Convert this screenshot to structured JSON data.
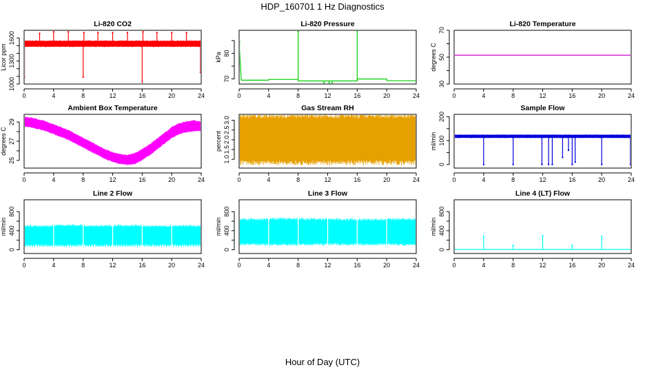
{
  "figure": {
    "title": "HDP_160701  1 Hz Diagnostics",
    "xlabel": "Hour of Day (UTC)"
  },
  "chart_data": [
    {
      "type": "line",
      "title": "Li-820 CO2",
      "ylabel": "Licor ppm",
      "color": "#ff0000",
      "xlim": [
        0,
        24
      ],
      "ylim": [
        1000,
        1700
      ],
      "xticks": [
        0,
        4,
        8,
        12,
        16,
        20,
        24
      ],
      "yticks": [
        1000,
        1300,
        1600
      ],
      "yticks_minor": [
        1100,
        1200,
        1400,
        1500
      ],
      "band": {
        "x": [
          0,
          24
        ],
        "low": [
          1490,
          1490
        ],
        "high": [
          1560,
          1560
        ]
      },
      "spikes": [
        {
          "x": 0.05,
          "y": 1090
        },
        {
          "x": 2.1,
          "y": 1660
        },
        {
          "x": 4.0,
          "y": 1680
        },
        {
          "x": 6.0,
          "y": 1680
        },
        {
          "x": 8.0,
          "y": 1090
        },
        {
          "x": 8.1,
          "y": 1670
        },
        {
          "x": 10.0,
          "y": 1670
        },
        {
          "x": 12.0,
          "y": 1670
        },
        {
          "x": 14.0,
          "y": 1670
        },
        {
          "x": 16.0,
          "y": 1000
        },
        {
          "x": 16.1,
          "y": 1680
        },
        {
          "x": 18.0,
          "y": 1670
        },
        {
          "x": 20.0,
          "y": 1670
        },
        {
          "x": 22.0,
          "y": 1670
        },
        {
          "x": 23.9,
          "y": 1150
        }
      ]
    },
    {
      "type": "line",
      "title": "Li-820 Pressure",
      "ylabel": "kPa",
      "color": "#00cc00",
      "xlim": [
        0,
        24
      ],
      "ylim": [
        68,
        89
      ],
      "xticks": [
        0,
        4,
        8,
        12,
        16,
        20,
        24
      ],
      "yticks": [
        70,
        80
      ],
      "yticks_minor": [
        75,
        85
      ],
      "line": {
        "x": [
          0,
          0.3,
          4,
          4.01,
          8,
          8.01,
          16,
          16.01,
          20,
          20.01,
          24
        ],
        "y": [
          84,
          69.5,
          69.5,
          69.8,
          69.8,
          69.2,
          69.2,
          70.0,
          70.0,
          69.3,
          69.3
        ]
      },
      "spikes": [
        {
          "x": 0.05,
          "y": 84.5
        },
        {
          "x": 8.0,
          "y": 88.5
        },
        {
          "x": 16.0,
          "y": 88.8
        },
        {
          "x": 24.0,
          "y": 88.5
        },
        {
          "x": 11.5,
          "y": 68.3
        },
        {
          "x": 12.2,
          "y": 68.3
        },
        {
          "x": 12.6,
          "y": 68.3
        }
      ]
    },
    {
      "type": "line",
      "title": "Li-820 Temperature",
      "ylabel": "degrees C",
      "color": "#cc00cc",
      "xlim": [
        0,
        24
      ],
      "ylim": [
        30,
        70
      ],
      "xticks": [
        0,
        4,
        8,
        12,
        16,
        20,
        24
      ],
      "yticks": [
        30,
        50,
        70
      ],
      "yticks_minor": [
        40,
        60
      ],
      "line": {
        "x": [
          0,
          24
        ],
        "y": [
          51.5,
          51.5
        ]
      }
    },
    {
      "type": "area",
      "title": "Ambient Box Temperature",
      "ylabel": "degrees C",
      "color": "#ff00ff",
      "xlim": [
        0,
        24
      ],
      "ylim": [
        24.2,
        29.8
      ],
      "xticks": [
        0,
        4,
        8,
        12,
        16,
        20,
        24
      ],
      "yticks": [
        25,
        27,
        29
      ],
      "yticks_minor": [
        26,
        28
      ],
      "band": {
        "x": [
          0,
          1,
          2,
          3,
          4,
          5,
          6,
          7,
          8,
          9,
          10,
          11,
          12,
          13,
          14,
          15,
          16,
          17,
          18,
          19,
          20,
          21,
          22,
          23,
          24
        ],
        "low": [
          28.6,
          28.5,
          28.3,
          28.1,
          27.8,
          27.5,
          27.2,
          26.8,
          26.4,
          26.0,
          25.6,
          25.2,
          24.9,
          24.7,
          24.6,
          24.7,
          25.1,
          25.6,
          26.2,
          26.8,
          27.4,
          27.8,
          28.0,
          28.1,
          28.1
        ],
        "high": [
          29.5,
          29.4,
          29.2,
          29.0,
          28.7,
          28.4,
          28.1,
          27.7,
          27.3,
          26.9,
          26.5,
          26.1,
          25.8,
          25.6,
          25.5,
          25.7,
          26.1,
          26.6,
          27.2,
          27.8,
          28.4,
          28.8,
          29.0,
          29.1,
          29.0
        ]
      }
    },
    {
      "type": "area",
      "title": "Gas Stream RH",
      "ylabel": "percent",
      "color": "#e6a000",
      "xlim": [
        0,
        24
      ],
      "ylim": [
        0.55,
        3.3
      ],
      "xticks": [
        0,
        4,
        8,
        12,
        16,
        20,
        24
      ],
      "yticks": [
        1.0,
        1.5,
        2.0,
        2.5,
        3.0
      ],
      "yticks_format": "1dp",
      "band": {
        "x": [
          0,
          24
        ],
        "low": [
          0.95,
          0.95
        ],
        "high": [
          3.1,
          3.1
        ]
      },
      "dips": [
        {
          "x": 1.2,
          "y": 1.6
        },
        {
          "x": 2.4,
          "y": 2.0
        },
        {
          "x": 3.5,
          "y": 1.3
        },
        {
          "x": 4.8,
          "y": 0.8
        },
        {
          "x": 5.4,
          "y": 1.1
        },
        {
          "x": 6.3,
          "y": 1.8
        },
        {
          "x": 7.7,
          "y": 1.3
        },
        {
          "x": 8.6,
          "y": 2.2
        },
        {
          "x": 9.4,
          "y": 1.5
        },
        {
          "x": 10.2,
          "y": 2.0
        },
        {
          "x": 11.1,
          "y": 1.4
        },
        {
          "x": 12.4,
          "y": 1.9
        },
        {
          "x": 13.6,
          "y": 1.5
        },
        {
          "x": 14.8,
          "y": 1.8
        },
        {
          "x": 15.7,
          "y": 1.4
        },
        {
          "x": 16.5,
          "y": 2.1
        },
        {
          "x": 17.4,
          "y": 1.7
        },
        {
          "x": 18.6,
          "y": 1.5
        },
        {
          "x": 19.8,
          "y": 2.2
        },
        {
          "x": 21.1,
          "y": 1.6
        },
        {
          "x": 22.3,
          "y": 1.9
        },
        {
          "x": 23.4,
          "y": 1.5
        }
      ]
    },
    {
      "type": "line",
      "title": "Sample Flow",
      "ylabel": "ml/min",
      "color": "#0000dd",
      "xlim": [
        0,
        24
      ],
      "ylim": [
        -15,
        210
      ],
      "xticks": [
        0,
        4,
        8,
        12,
        16,
        20,
        24
      ],
      "yticks": [
        0,
        100,
        200
      ],
      "yticks_minor": [
        50,
        150
      ],
      "band": {
        "x": [
          0,
          24
        ],
        "low": [
          112,
          112
        ],
        "high": [
          124,
          124
        ]
      },
      "dips": [
        {
          "x": 4.0,
          "y": 0
        },
        {
          "x": 8.0,
          "y": 0
        },
        {
          "x": 11.9,
          "y": 0
        },
        {
          "x": 12.8,
          "y": 0
        },
        {
          "x": 13.3,
          "y": 0
        },
        {
          "x": 14.7,
          "y": 30
        },
        {
          "x": 15.5,
          "y": 60
        },
        {
          "x": 16.0,
          "y": 0
        },
        {
          "x": 16.4,
          "y": 10
        },
        {
          "x": 20.0,
          "y": 0
        },
        {
          "x": 23.9,
          "y": 0
        }
      ]
    },
    {
      "type": "area",
      "title": "Line 2 Flow",
      "ylabel": "ml/min",
      "color": "#00ffff",
      "xlim": [
        0,
        24
      ],
      "ylim": [
        -80,
        1050
      ],
      "xticks": [
        0,
        4,
        8,
        12,
        16,
        20,
        24
      ],
      "yticks": [
        0,
        400,
        800
      ],
      "yticks_minor": [
        200,
        600
      ],
      "band": {
        "x": [
          0,
          4,
          4.01,
          8,
          8.01,
          12,
          12.01,
          16,
          16.01,
          20,
          20.01,
          24
        ],
        "low": [
          120,
          120,
          120,
          120,
          120,
          120,
          120,
          120,
          120,
          120,
          120,
          120
        ],
        "high": [
          480,
          480,
          490,
          490,
          480,
          480,
          485,
          485,
          475,
          475,
          480,
          480
        ]
      },
      "comb": {
        "low": 60,
        "high": 120,
        "spacing": 0.33
      },
      "gaps": [
        4.0,
        8.0,
        12.0,
        16.0,
        20.0
      ]
    },
    {
      "type": "area",
      "title": "Line 3 Flow",
      "ylabel": "ml/min",
      "color": "#00ffff",
      "xlim": [
        0,
        24
      ],
      "ylim": [
        -80,
        1050
      ],
      "xticks": [
        0,
        4,
        8,
        12,
        16,
        20,
        24
      ],
      "yticks": [
        0,
        400,
        800
      ],
      "yticks_minor": [
        200,
        600
      ],
      "band": {
        "x": [
          0,
          4,
          4.01,
          8,
          8.01,
          12,
          12.01,
          16,
          16.01,
          20,
          20.01,
          24
        ],
        "low": [
          140,
          140,
          140,
          140,
          140,
          140,
          140,
          140,
          140,
          140,
          140,
          140
        ],
        "high": [
          610,
          610,
          620,
          620,
          615,
          615,
          610,
          610,
          605,
          605,
          615,
          615
        ]
      },
      "gaps": [
        4.0,
        8.0,
        12.0,
        16.0,
        20.0
      ]
    },
    {
      "type": "line",
      "title": "Line 4 (LT) Flow",
      "ylabel": "ml/min",
      "color": "#00ffff",
      "xlim": [
        0,
        24
      ],
      "ylim": [
        -80,
        1050
      ],
      "xticks": [
        0,
        4,
        8,
        12,
        16,
        20,
        24
      ],
      "yticks": [
        0,
        400,
        800
      ],
      "yticks_minor": [
        200,
        600
      ],
      "line": {
        "x": [
          0,
          24
        ],
        "y": [
          5,
          5
        ]
      },
      "spikes": [
        {
          "x": 4.0,
          "y": 280
        },
        {
          "x": 8.0,
          "y": 90
        },
        {
          "x": 12.0,
          "y": 290
        },
        {
          "x": 16.0,
          "y": 90
        },
        {
          "x": 20.0,
          "y": 280
        },
        {
          "x": 24.0,
          "y": 90
        }
      ]
    }
  ]
}
